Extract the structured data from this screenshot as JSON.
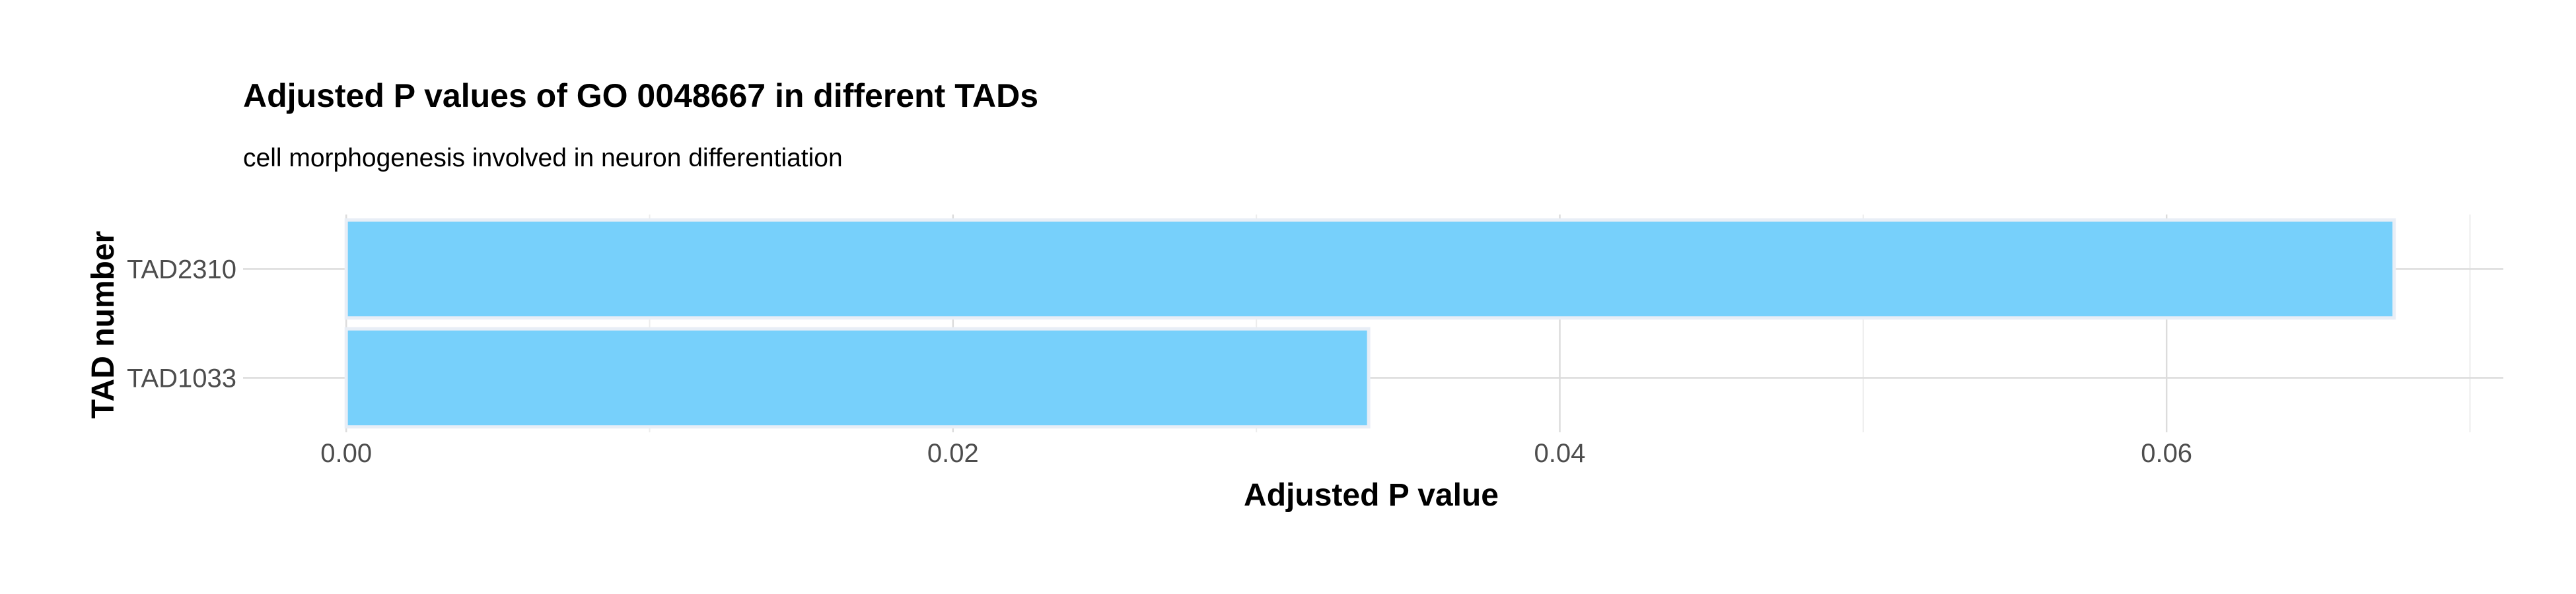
{
  "chart_data": {
    "type": "bar",
    "orientation": "horizontal",
    "title": "Adjusted P values of GO 0048667 in different TADs",
    "subtitle": "cell morphogenesis involved in neuron differentiation",
    "xlabel": "Adjusted P value",
    "ylabel": "TAD number",
    "categories": [
      "TAD2310",
      "TAD1033"
    ],
    "values": [
      0.0675,
      0.0337
    ],
    "xlim": [
      -0.0034,
      0.0711
    ],
    "xticks": [
      "0.00",
      "0.02",
      "0.04",
      "0.06"
    ],
    "xtick_values": [
      0.0,
      0.02,
      0.04,
      0.06
    ],
    "grid": true,
    "legend": "none",
    "colors": {
      "bar_fill": "#77d0fb",
      "bar_edge": "#e8eef6",
      "grid_major": "#dcdcdc",
      "grid_minor": "#ececec"
    }
  }
}
